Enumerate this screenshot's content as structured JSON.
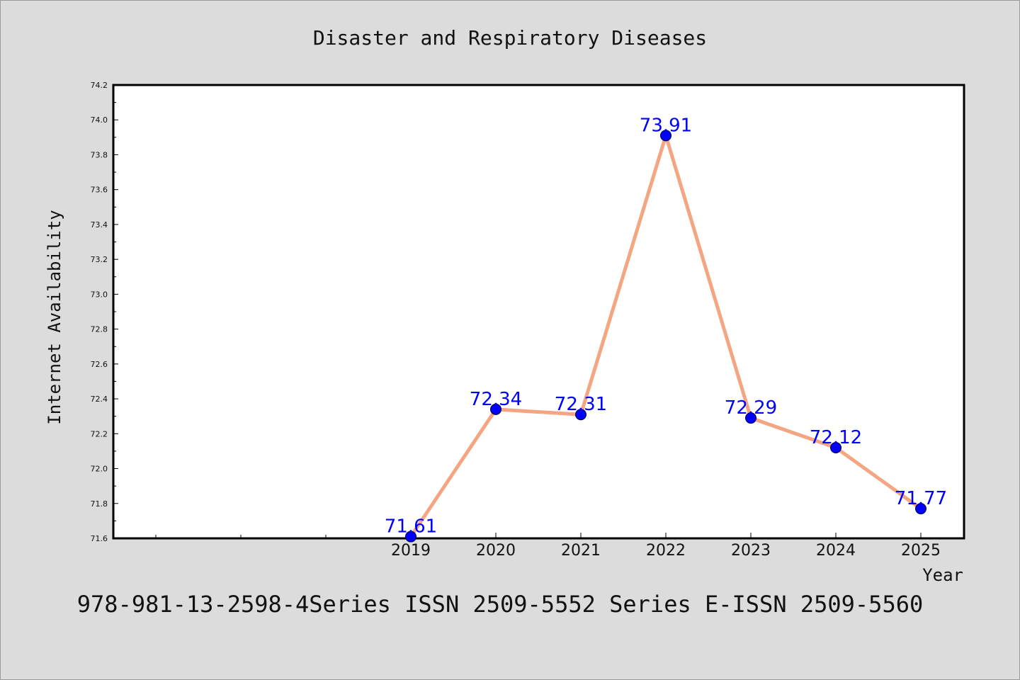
{
  "chart_data": {
    "type": "line",
    "title": "Disaster and Respiratory Diseases",
    "xlabel": "Year",
    "ylabel": "Internet Availability",
    "x": [
      "2019",
      "2020",
      "2021",
      "2022",
      "2023",
      "2024",
      "2025"
    ],
    "values": [
      71.61,
      72.34,
      72.31,
      73.91,
      72.29,
      72.12,
      71.77
    ],
    "data_labels": [
      "71.61",
      "72.34",
      "72.31",
      "73.91",
      "72.29",
      "72.12",
      "71.77"
    ],
    "ylim": [
      71.6,
      74.2
    ],
    "yticks": [
      "71.6",
      "71.8",
      "72.0",
      "72.2",
      "72.4",
      "72.6",
      "72.8",
      "73.0",
      "73.2",
      "73.4",
      "73.6",
      "73.8",
      "74.0",
      "74.2"
    ],
    "grid": false,
    "line_color": "#f4a582",
    "marker_color": "#0000ff",
    "label_color": "#0000ff"
  },
  "footer_text": "978-981-13-2598-4Series ISSN 2509-5552 Series E-ISSN 2509-5560"
}
